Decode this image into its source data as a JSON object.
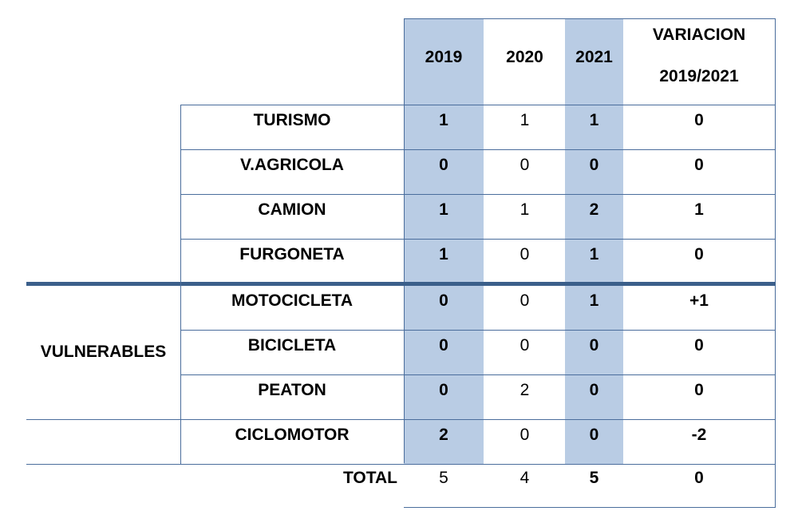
{
  "header": {
    "y2019": "2019",
    "y2020": "2020",
    "y2021": "2021",
    "variation_line1": "VARIACION",
    "variation_line2": "2019/2021"
  },
  "group_label": "VULNERABLES",
  "rows": [
    {
      "label": "TURISMO",
      "v2019": "1",
      "v2020": "1",
      "v2021": "1",
      "variation": "0"
    },
    {
      "label": "V.AGRICOLA",
      "v2019": "0",
      "v2020": "0",
      "v2021": "0",
      "variation": "0"
    },
    {
      "label": "CAMION",
      "v2019": "1",
      "v2020": "1",
      "v2021": "2",
      "variation": "1"
    },
    {
      "label": "FURGONETA",
      "v2019": "1",
      "v2020": "0",
      "v2021": "1",
      "variation": "0"
    },
    {
      "label": "MOTOCICLETA",
      "v2019": "0",
      "v2020": "0",
      "v2021": "1",
      "variation": "+1"
    },
    {
      "label": "BICICLETA",
      "v2019": "0",
      "v2020": "0",
      "v2021": "0",
      "variation": "0"
    },
    {
      "label": "PEATON",
      "v2019": "0",
      "v2020": "2",
      "v2021": "0",
      "variation": "0"
    },
    {
      "label": "CICLOMOTOR",
      "v2019": "2",
      "v2020": "0",
      "v2021": "0",
      "variation": "-2"
    }
  ],
  "total": {
    "label": "TOTAL",
    "v2019": "5",
    "v2020": "4",
    "v2021": "5",
    "variation": "0"
  },
  "colors": {
    "highlight": "#b9cce4",
    "rule": "#4a6d9c",
    "separator": "#3b5f8a"
  }
}
